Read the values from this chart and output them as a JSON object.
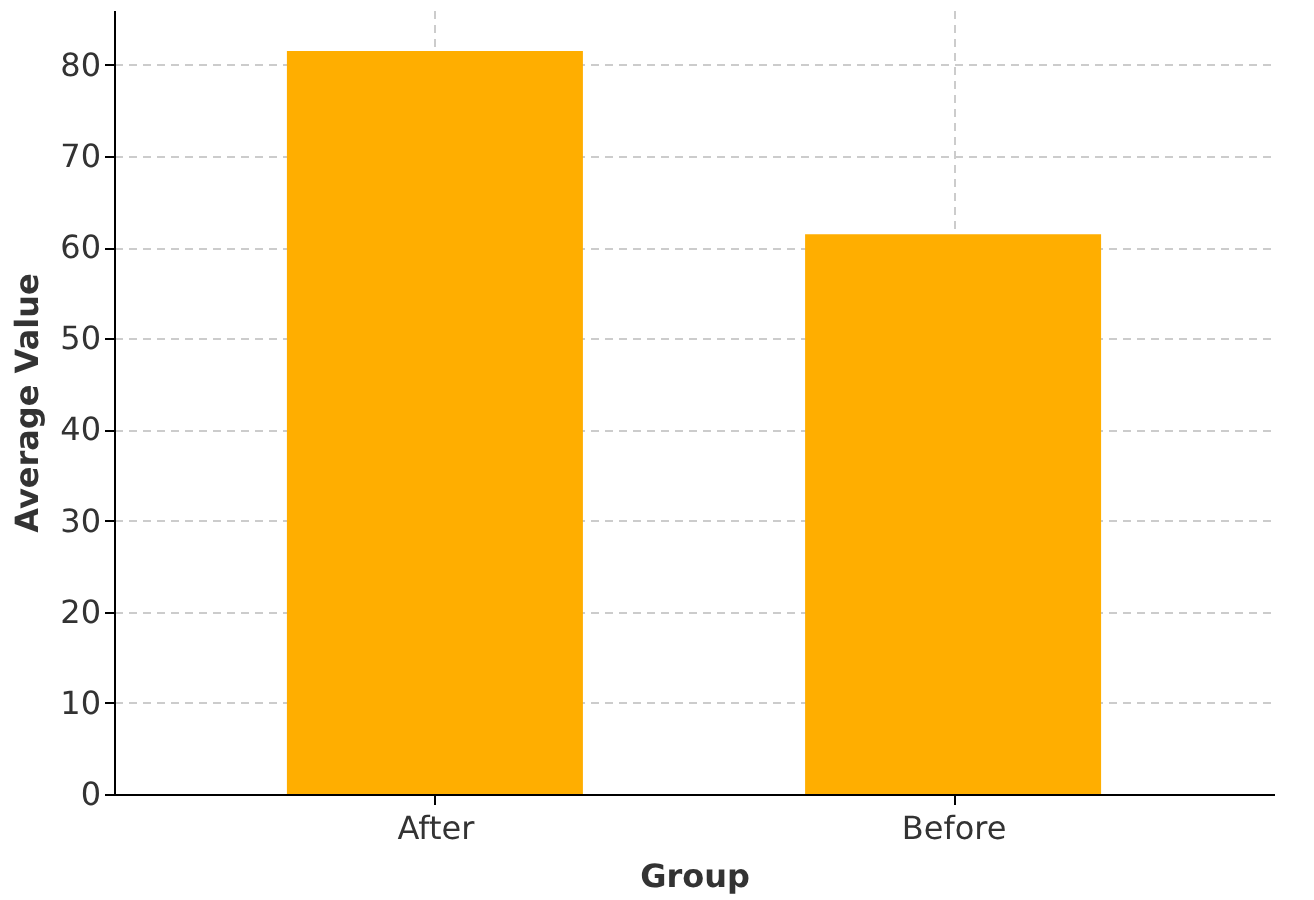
{
  "chart_data": {
    "type": "bar",
    "xlabel": "Group",
    "ylabel": "Average Value",
    "categories": [
      "After",
      "Before"
    ],
    "values": [
      81.5,
      61.4
    ],
    "color": "#ffae00",
    "ylim": [
      0,
      86
    ],
    "yticks": [
      0,
      10,
      20,
      30,
      40,
      50,
      60,
      70,
      80
    ],
    "grid": true
  }
}
